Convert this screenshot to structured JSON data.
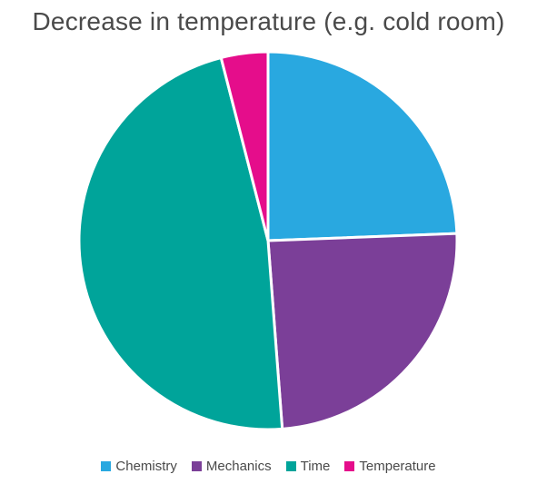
{
  "chart_data": {
    "type": "pie",
    "title": "Decrease in temperature (e.g. cold room)",
    "legend_position": "bottom",
    "slices": [
      {
        "label": "Chemistry",
        "value": 24.4,
        "color": "#29a8e0"
      },
      {
        "label": "Mechanics",
        "value": 24.4,
        "color": "#7b3f98"
      },
      {
        "label": "Time",
        "value": 47.2,
        "color": "#00a49a"
      },
      {
        "label": "Temperature",
        "value": 4.0,
        "color": "#e50d8b"
      }
    ]
  }
}
